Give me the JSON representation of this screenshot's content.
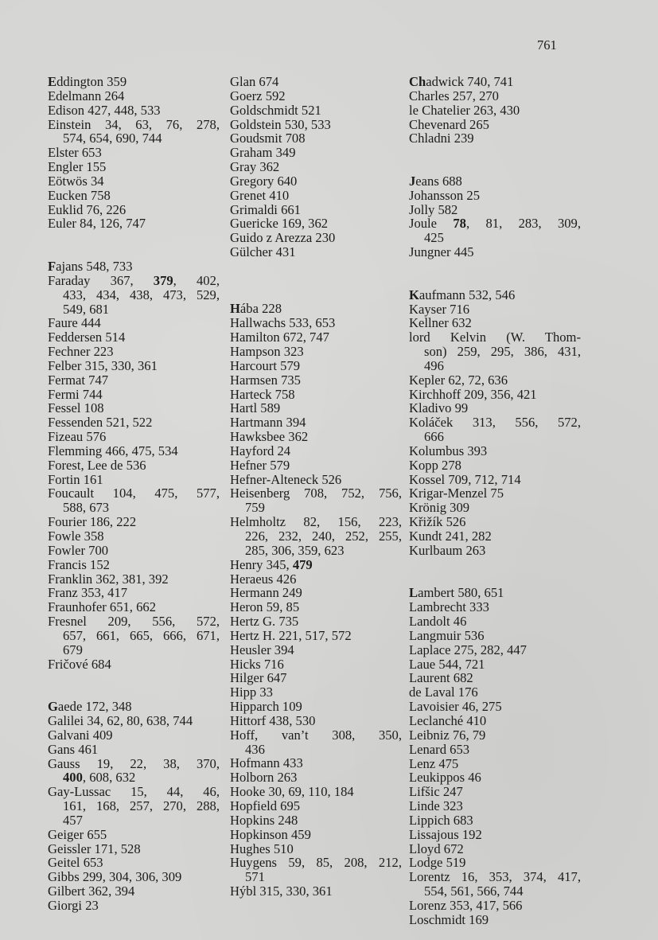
{
  "page_number": "761",
  "columns": [
    [
      {
        "head": true,
        "lines": [
          "Eddington 359"
        ]
      },
      {
        "lines": [
          "Edelmann 264"
        ]
      },
      {
        "lines": [
          "Edison 427, 448, 533"
        ]
      },
      {
        "lines": [
          "Einstein 34, 63, 76, 278,",
          "574, 654, 690, 744"
        ]
      },
      {
        "lines": [
          "Elster 653"
        ]
      },
      {
        "lines": [
          "Engler 155"
        ]
      },
      {
        "lines": [
          "Eötwös 34"
        ]
      },
      {
        "lines": [
          "Eucken 758"
        ]
      },
      {
        "lines": [
          "Euklid 76, 226"
        ]
      },
      {
        "lines": [
          "Euler 84, 126, 747"
        ]
      },
      {
        "gap": 2
      },
      {
        "head": true,
        "lines": [
          "Fajans 548, 733"
        ]
      },
      {
        "bold": [
          "379"
        ],
        "lines": [
          "Faraday 367, 379, 402,",
          "433, 434, 438, 473, 529,",
          "549, 681"
        ]
      },
      {
        "lines": [
          "Faure 444"
        ]
      },
      {
        "lines": [
          "Feddersen 514"
        ]
      },
      {
        "lines": [
          "Fechner 223"
        ]
      },
      {
        "lines": [
          "Felber 315, 330, 361"
        ]
      },
      {
        "lines": [
          "Fermat 747"
        ]
      },
      {
        "lines": [
          "Fermi 744"
        ]
      },
      {
        "lines": [
          "Fessel 108"
        ]
      },
      {
        "lines": [
          "Fessenden 521, 522"
        ]
      },
      {
        "lines": [
          "Fizeau 576"
        ]
      },
      {
        "lines": [
          "Flemming 466, 475, 534"
        ]
      },
      {
        "lines": [
          "Forest, Lee de 536"
        ]
      },
      {
        "lines": [
          "Fortin 161"
        ]
      },
      {
        "lines": [
          "Foucault 104, 475, 577,",
          "588, 673"
        ]
      },
      {
        "lines": [
          "Fourier 186, 222"
        ]
      },
      {
        "lines": [
          "Fowle 358"
        ]
      },
      {
        "lines": [
          "Fowler 700"
        ]
      },
      {
        "lines": [
          "Francis 152"
        ]
      },
      {
        "lines": [
          "Franklin 362, 381, 392"
        ]
      },
      {
        "lines": [
          "Franz 353, 417"
        ]
      },
      {
        "lines": [
          "Fraunhofer 651, 662"
        ]
      },
      {
        "lines": [
          "Fresnel 209, 556, 572,",
          "657, 661, 665, 666, 671,",
          "679"
        ]
      },
      {
        "lines": [
          "Fričové 684"
        ]
      },
      {
        "gap": 2
      },
      {
        "head": true,
        "lines": [
          "Gaede 172, 348"
        ]
      },
      {
        "lines": [
          "Galilei 34, 62, 80, 638, 744"
        ]
      },
      {
        "lines": [
          "Galvani 409"
        ]
      },
      {
        "lines": [
          "Gans 461"
        ]
      },
      {
        "bold": [
          "400"
        ],
        "lines": [
          "Gauss 19, 22, 38, 370,",
          "400, 608, 632"
        ]
      },
      {
        "lines": [
          "Gay-Lussac 15, 44, 46,",
          "161, 168, 257, 270, 288,",
          "457"
        ]
      },
      {
        "lines": [
          "Geiger 655"
        ]
      },
      {
        "lines": [
          "Geissler 171, 528"
        ]
      },
      {
        "lines": [
          "Geitel 653"
        ]
      },
      {
        "lines": [
          "Gibbs 299, 304, 306, 309"
        ]
      },
      {
        "lines": [
          "Gilbert 362, 394"
        ]
      },
      {
        "lines": [
          "Giorgi 23"
        ]
      }
    ],
    [
      {
        "lines": [
          "Glan 674"
        ]
      },
      {
        "lines": [
          "Goerz 592"
        ]
      },
      {
        "lines": [
          "Goldschmidt 521"
        ]
      },
      {
        "lines": [
          "Goldstein 530, 533"
        ]
      },
      {
        "lines": [
          "Goudsmit 708"
        ]
      },
      {
        "lines": [
          "Graham 349"
        ]
      },
      {
        "lines": [
          "Gray 362"
        ]
      },
      {
        "lines": [
          "Gregory 640"
        ]
      },
      {
        "lines": [
          "Grenet 410"
        ]
      },
      {
        "lines": [
          "Grimaldi 661"
        ]
      },
      {
        "lines": [
          "Guericke 169, 362"
        ]
      },
      {
        "lines": [
          "Guido z Arezza 230"
        ]
      },
      {
        "lines": [
          "Gülcher 431"
        ]
      },
      {
        "gap": 3
      },
      {
        "head": true,
        "lines": [
          "Hába 228"
        ]
      },
      {
        "lines": [
          "Hallwachs 533, 653"
        ]
      },
      {
        "lines": [
          "Hamilton 672, 747"
        ]
      },
      {
        "lines": [
          "Hampson 323"
        ]
      },
      {
        "lines": [
          "Harcourt 579"
        ]
      },
      {
        "lines": [
          "Harmsen 735"
        ]
      },
      {
        "lines": [
          "Harteck 758"
        ]
      },
      {
        "lines": [
          "Hartl 589"
        ]
      },
      {
        "lines": [
          "Hartmann 394"
        ]
      },
      {
        "lines": [
          "Hawksbee 362"
        ]
      },
      {
        "lines": [
          "Hayford 24"
        ]
      },
      {
        "lines": [
          "Hefner 579"
        ]
      },
      {
        "lines": [
          "Hefner-Alteneck 526"
        ]
      },
      {
        "lines": [
          "Heisenberg 708, 752, 756,",
          "759"
        ]
      },
      {
        "lines": [
          "Helmholtz 82, 156, 223,",
          "226, 232, 240, 252, 255,",
          "285, 306, 359, 623"
        ]
      },
      {
        "bold": [
          "479"
        ],
        "lines": [
          "Henry 345, 479"
        ]
      },
      {
        "lines": [
          "Heraeus 426"
        ]
      },
      {
        "lines": [
          "Hermann 249"
        ]
      },
      {
        "lines": [
          "Heron 59, 85"
        ]
      },
      {
        "lines": [
          "Hertz G. 735"
        ]
      },
      {
        "lines": [
          "Hertz H. 221, 517, 572"
        ]
      },
      {
        "lines": [
          "Heusler 394"
        ]
      },
      {
        "lines": [
          "Hicks 716"
        ]
      },
      {
        "lines": [
          "Hilger 647"
        ]
      },
      {
        "lines": [
          "Hipp 33"
        ]
      },
      {
        "lines": [
          "Hipparch 109"
        ]
      },
      {
        "lines": [
          "Hittorf 438, 530"
        ]
      },
      {
        "lines": [
          "Hoff, van’t 308, 350,",
          "436"
        ]
      },
      {
        "lines": [
          "Hofmann 433"
        ]
      },
      {
        "lines": [
          "Holborn 263"
        ]
      },
      {
        "lines": [
          "Hooke 30, 69, 110, 184"
        ]
      },
      {
        "lines": [
          "Hopfield 695"
        ]
      },
      {
        "lines": [
          "Hopkins 248"
        ]
      },
      {
        "lines": [
          "Hopkinson 459"
        ]
      },
      {
        "lines": [
          "Hughes 510"
        ]
      },
      {
        "lines": [
          "Huygens 59, 85, 208, 212,",
          "571"
        ]
      },
      {
        "lines": [
          "Hýbl 315, 330, 361"
        ]
      }
    ],
    [
      {
        "head": true,
        "head_len": 2,
        "lines": [
          "Chadwick 740, 741"
        ]
      },
      {
        "lines": [
          "Charles 257, 270"
        ]
      },
      {
        "lines": [
          "le Chatelier 263, 430"
        ]
      },
      {
        "lines": [
          "Chevenard 265"
        ]
      },
      {
        "lines": [
          "Chladni 239"
        ]
      },
      {
        "gap": 2
      },
      {
        "head": true,
        "lines": [
          "Jeans 688"
        ]
      },
      {
        "lines": [
          "Johansson 25"
        ]
      },
      {
        "lines": [
          "Jolly 582"
        ]
      },
      {
        "bold": [
          "78"
        ],
        "lines": [
          "Joule 78, 81, 283, 309,",
          "425"
        ]
      },
      {
        "lines": [
          "Jungner 445"
        ]
      },
      {
        "gap": 2
      },
      {
        "head": true,
        "lines": [
          "Kaufmann 532, 546"
        ]
      },
      {
        "lines": [
          "Kayser 716"
        ]
      },
      {
        "lines": [
          "Kellner 632"
        ]
      },
      {
        "lines": [
          "lord Kelvin (W. Thom-",
          "son) 259, 295, 386, 431,",
          "496"
        ]
      },
      {
        "lines": [
          "Kepler 62, 72, 636"
        ]
      },
      {
        "lines": [
          "Kirchhoff 209, 356, 421"
        ]
      },
      {
        "lines": [
          "Kladivo 99"
        ]
      },
      {
        "lines": [
          "Koláček 313, 556, 572,",
          "666"
        ]
      },
      {
        "lines": [
          "Kolumbus 393"
        ]
      },
      {
        "lines": [
          "Kopp 278"
        ]
      },
      {
        "lines": [
          "Kossel 709, 712, 714"
        ]
      },
      {
        "lines": [
          "Krigar-Menzel 75"
        ]
      },
      {
        "lines": [
          "Krönig 309"
        ]
      },
      {
        "lines": [
          "Křižík 526"
        ]
      },
      {
        "lines": [
          "Kundt 241, 282"
        ]
      },
      {
        "lines": [
          "Kurlbaum 263"
        ]
      },
      {
        "gap": 2
      },
      {
        "head": true,
        "lines": [
          "Lambert 580, 651"
        ]
      },
      {
        "lines": [
          "Lambrecht 333"
        ]
      },
      {
        "lines": [
          "Landolt 46"
        ]
      },
      {
        "lines": [
          "Langmuir 536"
        ]
      },
      {
        "lines": [
          "Laplace 275, 282, 447"
        ]
      },
      {
        "lines": [
          "Laue 544, 721"
        ]
      },
      {
        "lines": [
          "Laurent 682"
        ]
      },
      {
        "lines": [
          "de Laval 176"
        ]
      },
      {
        "lines": [
          "Lavoisier 46, 275"
        ]
      },
      {
        "lines": [
          "Leclanché 410"
        ]
      },
      {
        "lines": [
          "Leibniz 76, 79"
        ]
      },
      {
        "lines": [
          "Lenard 653"
        ]
      },
      {
        "lines": [
          "Lenz 475"
        ]
      },
      {
        "lines": [
          "Leukippos 46"
        ]
      },
      {
        "lines": [
          "Lifšic 247"
        ]
      },
      {
        "lines": [
          "Linde 323"
        ]
      },
      {
        "lines": [
          "Lippich 683"
        ]
      },
      {
        "lines": [
          "Lissajous 192"
        ]
      },
      {
        "lines": [
          "Lloyd 672"
        ]
      },
      {
        "lines": [
          "Lodge 519"
        ]
      },
      {
        "lines": [
          "Lorentz 16, 353, 374, 417,",
          "554, 561, 566, 744"
        ]
      },
      {
        "lines": [
          "Lorenz 353, 417, 566"
        ]
      },
      {
        "lines": [
          "Loschmidt 169"
        ]
      }
    ]
  ]
}
